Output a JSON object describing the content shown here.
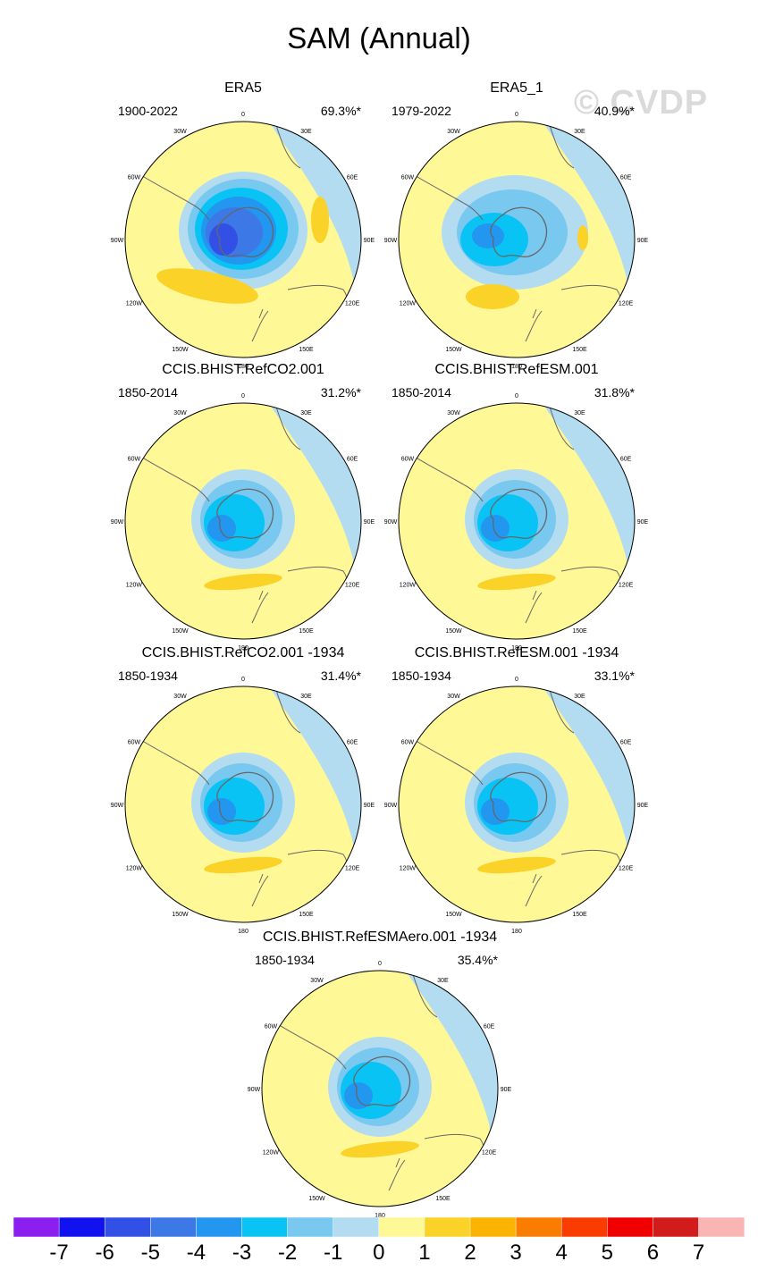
{
  "title": "SAM (Annual)",
  "watermark": "© CVDP",
  "colors": {
    "ocean_light": "#b3dcf0",
    "land_outline": "#666666",
    "levels": [
      "#8c1ff0",
      "#1212f0",
      "#3250e6",
      "#3c78e6",
      "#2396f0",
      "#0ac3f5",
      "#78c8f0",
      "#b4dcf0",
      "#fff896",
      "#fad228",
      "#fab400",
      "#fa7d00",
      "#fa3c00",
      "#f00000",
      "#d21c1c",
      "#fab4b4"
    ]
  },
  "longitude_labels": [
    "0",
    "30E",
    "60E",
    "90E",
    "120E",
    "150E",
    "180",
    "150W",
    "120W",
    "90W",
    "60W",
    "30W"
  ],
  "chart_data": [
    {
      "type": "heatmap",
      "title": "ERA5",
      "years": "1900-2022",
      "pct": "69.3%*",
      "variant": 0
    },
    {
      "type": "heatmap",
      "title": "ERA5_1",
      "years": "1979-2022",
      "pct": "40.9%*",
      "variant": 1
    },
    {
      "type": "heatmap",
      "title": "CCIS.BHIST.RefCO2.001",
      "years": "1850-2014",
      "pct": "31.2%*",
      "variant": 2
    },
    {
      "type": "heatmap",
      "title": "CCIS.BHIST.RefESM.001",
      "years": "1850-2014",
      "pct": "31.8%*",
      "variant": 2
    },
    {
      "type": "heatmap",
      "title": "CCIS.BHIST.RefCO2.001 -1934",
      "years": "1850-1934",
      "pct": "31.4%*",
      "variant": 2
    },
    {
      "type": "heatmap",
      "title": "CCIS.BHIST.RefESM.001 -1934",
      "years": "1850-1934",
      "pct": "33.1%*",
      "variant": 2
    },
    {
      "type": "heatmap",
      "title": "CCIS.BHIST.RefESMAero.001 -1934",
      "years": "1850-1934",
      "pct": "35.4%*",
      "variant": 2
    }
  ],
  "colorbar": {
    "labels": [
      "-7",
      "-6",
      "-5",
      "-4",
      "-3",
      "-2",
      "-1",
      "0",
      "1",
      "2",
      "3",
      "4",
      "5",
      "6",
      "7"
    ]
  }
}
